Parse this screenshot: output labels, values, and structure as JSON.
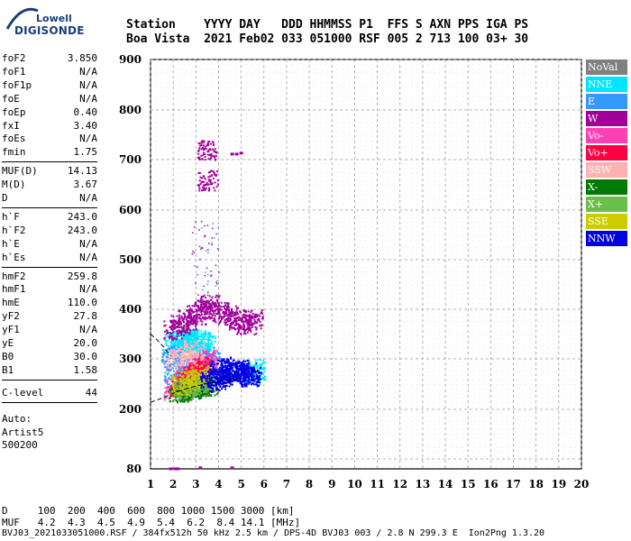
{
  "logo": {
    "line1": "Lowell",
    "line2": "DIGISONDE"
  },
  "header": {
    "line1": "Station    YYYY DAY   DDD HHMMSS P1  FFS S AXN PPS IGA PS",
    "line2": "Boa Vista  2021 Feb02 033 051000 RSF 005 2 713 100 03+ 30"
  },
  "params": {
    "group1": [
      {
        "label": "foF2",
        "value": "3.850"
      },
      {
        "label": "foF1",
        "value": "N/A"
      },
      {
        "label": "foF1p",
        "value": "N/A"
      },
      {
        "label": "foE",
        "value": "N/A"
      },
      {
        "label": "foEp",
        "value": "0.40"
      },
      {
        "label": "fxI",
        "value": "3.40"
      },
      {
        "label": "foEs",
        "value": "N/A"
      },
      {
        "label": "fmin",
        "value": "1.75"
      }
    ],
    "group2": [
      {
        "label": "MUF(D)",
        "value": "14.13"
      },
      {
        "label": "M(D)",
        "value": "3.67"
      },
      {
        "label": "D",
        "value": "N/A"
      }
    ],
    "group3": [
      {
        "label": "h`F",
        "value": "243.0"
      },
      {
        "label": "h`F2",
        "value": "243.0"
      },
      {
        "label": "h`E",
        "value": "N/A"
      },
      {
        "label": "h`Es",
        "value": "N/A"
      }
    ],
    "group4": [
      {
        "label": "hmF2",
        "value": "259.8"
      },
      {
        "label": "hmF1",
        "value": "N/A"
      },
      {
        "label": "hmE",
        "value": "110.0"
      },
      {
        "label": "yF2",
        "value": "27.8"
      },
      {
        "label": "yF1",
        "value": "N/A"
      },
      {
        "label": "yE",
        "value": "20.0"
      },
      {
        "label": "B0",
        "value": "30.0"
      },
      {
        "label": "B1",
        "value": "1.58"
      }
    ],
    "clevel": {
      "label": "C-level",
      "value": "44"
    },
    "auto_lines": [
      "Auto:",
      "Artist5",
      "500200"
    ]
  },
  "legend": [
    {
      "label": "NoVal",
      "color": "#808080"
    },
    {
      "label": "NNE",
      "color": "#00e5ff"
    },
    {
      "label": "E",
      "color": "#3399ff"
    },
    {
      "label": "W",
      "color": "#a0009a"
    },
    {
      "label": "Vo-",
      "color": "#ff3fb4"
    },
    {
      "label": "Vo+",
      "color": "#ff0040"
    },
    {
      "label": "SSW",
      "color": "#ffb0b0"
    },
    {
      "label": "X-",
      "color": "#007a00"
    },
    {
      "label": "X+",
      "color": "#6abf4b"
    },
    {
      "label": "SSE",
      "color": "#cccc00"
    },
    {
      "label": "NNW",
      "color": "#0000e0"
    }
  ],
  "footer": {
    "d_line": "D     100  200  400  600  800 1000 1500 3000 [km]",
    "muf_line": "MUF   4.2  4.3  4.5  4.9  5.4  6.2  8.4 14.1 [MHz]",
    "info_line": "BVJ03_2021033051000.RSF / 384fx512h 50 kHz 2.5 km / DPS-4D BVJ03 003 / 2.8 N 299.3 E  Ion2Png 1.3.20"
  },
  "chart_data": {
    "type": "scatter",
    "x_ticks": [
      "1",
      "2",
      "3",
      "4",
      "5",
      "6",
      "7",
      "8",
      "9",
      "10",
      "11",
      "12",
      "13",
      "14",
      "15",
      "16",
      "17",
      "18",
      "19",
      "20"
    ],
    "y_ticks": [
      "80",
      "200",
      "300",
      "400",
      "500",
      "600",
      "700",
      "800",
      "900"
    ],
    "xlim": [
      1,
      20
    ],
    "ylim": [
      80,
      900
    ],
    "xlabel": "",
    "ylabel": "",
    "grid": true,
    "series": [
      {
        "name": "NNE",
        "color": "#00e5ff",
        "x": [
          2.0,
          2.2,
          2.4,
          2.6,
          2.8,
          3.0,
          3.2,
          3.4,
          5.5,
          5.6
        ],
        "y": [
          330,
          335,
          338,
          340,
          340,
          338,
          335,
          333,
          270,
          280
        ]
      },
      {
        "name": "E",
        "color": "#3399ff",
        "x": [
          2.0,
          2.3,
          2.6,
          3.0,
          3.3,
          3.6,
          1.9
        ],
        "y": [
          270,
          280,
          285,
          290,
          295,
          300,
          310
        ]
      },
      {
        "name": "W",
        "color": "#a0009a",
        "x": [
          2.0,
          2.3,
          2.6,
          3.0,
          3.3,
          3.6,
          4.0,
          4.4,
          4.8,
          5.2,
          5.5,
          3.5,
          3.5
        ],
        "y": [
          360,
          370,
          380,
          390,
          400,
          410,
          395,
          390,
          380,
          370,
          380,
          660,
          720
        ]
      },
      {
        "name": "Vo-",
        "color": "#ff3fb4",
        "x": [
          2.0,
          2.2,
          2.5,
          2.8,
          3.0,
          3.2,
          3.5
        ],
        "y": [
          240,
          250,
          260,
          270,
          280,
          290,
          300
        ]
      },
      {
        "name": "Vo+",
        "color": "#ff0040",
        "x": [
          2.2,
          2.5,
          2.8,
          3.0,
          3.3
        ],
        "y": [
          245,
          255,
          265,
          275,
          285
        ]
      },
      {
        "name": "X-",
        "color": "#007a00",
        "x": [
          2.2,
          2.5,
          2.8,
          3.0,
          3.2,
          3.5
        ],
        "y": [
          235,
          238,
          240,
          243,
          245,
          248
        ]
      },
      {
        "name": "X+",
        "color": "#6abf4b",
        "x": [
          2.4,
          2.7,
          3.0,
          3.3
        ],
        "y": [
          240,
          245,
          250,
          255
        ]
      },
      {
        "name": "SSE",
        "color": "#cccc00",
        "x": [
          2.3,
          2.7,
          3.1
        ],
        "y": [
          250,
          260,
          270
        ]
      },
      {
        "name": "NNW",
        "color": "#0000e0",
        "x": [
          3.6,
          3.9,
          4.2,
          4.5,
          4.8,
          5.1,
          5.4,
          4.0,
          4.4,
          4.9,
          5.3
        ],
        "y": [
          255,
          260,
          265,
          270,
          275,
          270,
          265,
          280,
          285,
          280,
          275
        ]
      },
      {
        "name": "SSW",
        "color": "#ffb0b0",
        "x": [
          2.1,
          2.5,
          2.9
        ],
        "y": [
          300,
          310,
          320
        ]
      }
    ],
    "fitted_curve": {
      "x": [
        1.0,
        1.5,
        2.0,
        2.5,
        3.0,
        3.5,
        4.0,
        4.5,
        5.0
      ],
      "y": [
        214,
        222,
        232,
        240,
        246,
        251,
        255,
        259,
        262
      ]
    },
    "fitted_curve_upper": {
      "x": [
        1.0,
        1.3,
        1.6,
        1.9
      ],
      "y": [
        350,
        338,
        323,
        306
      ]
    },
    "log_cluster": {
      "x": [
        4.6,
        4.8,
        5.0,
        1.9,
        2.1,
        2.2,
        3.2,
        4.6
      ],
      "y": [
        712,
        712,
        714,
        81,
        81,
        81,
        83,
        83
      ]
    }
  }
}
